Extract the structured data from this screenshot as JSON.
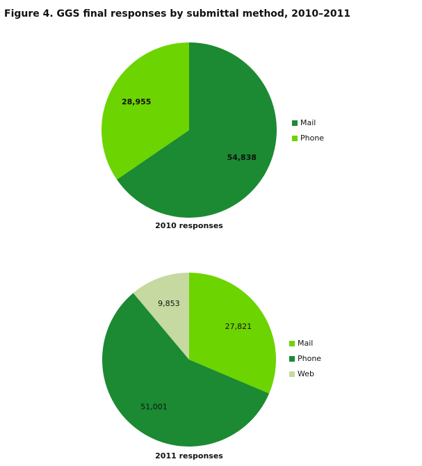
{
  "title": "Figure 4. GGS final responses by submittal method, 2010–2011",
  "chart_data": [
    {
      "type": "pie",
      "title": "2010 responses",
      "categories": [
        "Mail",
        "Phone"
      ],
      "values": [
        54838,
        28955
      ],
      "value_labels": [
        "54,838",
        "28,955"
      ],
      "colors": [
        "#1b8a32",
        "#6cd400"
      ],
      "bold_labels": true
    },
    {
      "type": "pie",
      "title": "2011 responses",
      "categories": [
        "Mail",
        "Phone",
        "Web"
      ],
      "values": [
        27821,
        51001,
        9853
      ],
      "value_labels": [
        "27,821",
        "51,001",
        "9,853"
      ],
      "colors": [
        "#6cd400",
        "#1b8a32",
        "#c5d9a0"
      ],
      "bold_labels": false
    }
  ]
}
